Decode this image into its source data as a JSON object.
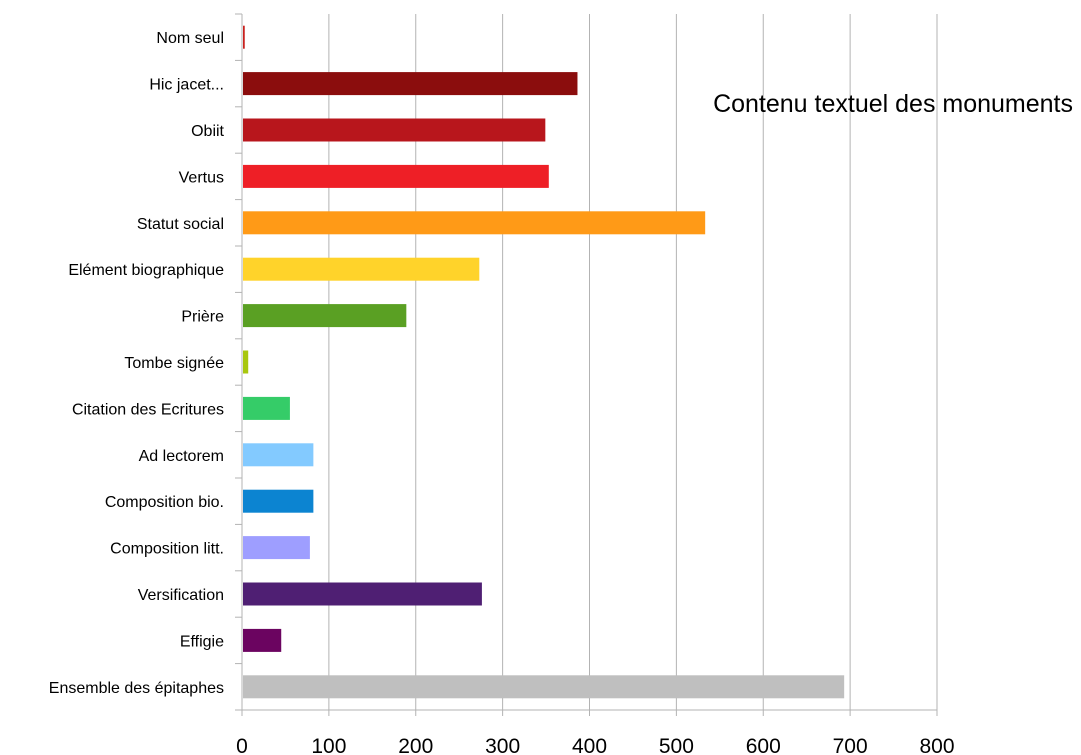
{
  "chart_data": {
    "type": "bar",
    "orientation": "horizontal",
    "title": "Contenu textuel des monuments",
    "categories": [
      "Nom seul",
      "Hic jacet...",
      "Obiit",
      "Vertus",
      "Statut social",
      "Elément biographique",
      "Prière",
      "Tombe signée",
      "Citation des Ecritures",
      "Ad lectorem",
      "Composition bio.",
      "Composition litt.",
      "Versification",
      "Effigie",
      "Ensemble des épitaphes"
    ],
    "values": [
      2,
      385,
      348,
      352,
      532,
      272,
      188,
      6,
      54,
      81,
      81,
      77,
      275,
      44,
      692
    ],
    "colors": [
      "#c9211e",
      "#8b0d0d",
      "#b8161c",
      "#ee1f26",
      "#ff9a17",
      "#ffd32a",
      "#5aa023",
      "#a8c70e",
      "#35cc68",
      "#83caff",
      "#0c84d1",
      "#9e9eff",
      "#4f1f73",
      "#6b0460",
      "#bfbfbf"
    ],
    "xlim": [
      0,
      800
    ],
    "xticks": [
      "0",
      "100",
      "200",
      "300",
      "400",
      "500",
      "600",
      "700",
      "800"
    ],
    "grid": "vertical",
    "legend": "none"
  }
}
